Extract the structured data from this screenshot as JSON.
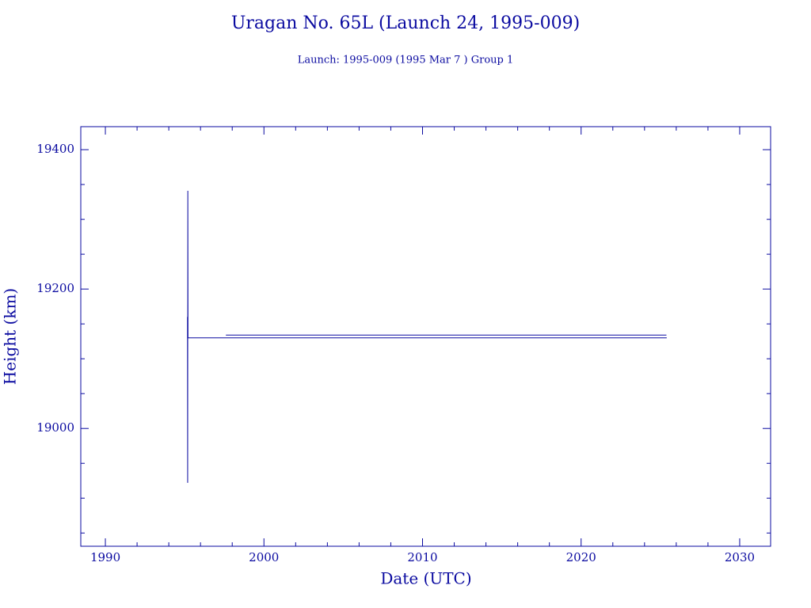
{
  "chart_data": {
    "type": "line",
    "title": "Uragan No. 65L (Launch 24, 1995-009)",
    "subtitle": "Launch: 1995-009  (1995 Mar  7 )  Group 1",
    "x_label": "Date (UTC)",
    "y_label": "Height (km)",
    "color": "#0a0aa0",
    "xlim": [
      1988.45,
      2031.95
    ],
    "ylim": [
      18831,
      19433
    ],
    "xticks": [
      1990,
      2000,
      2010,
      2020,
      2030
    ],
    "yticks": [
      19000,
      19200,
      19400
    ],
    "xminorticks": [
      1992,
      1994,
      1996,
      1998,
      2002,
      2004,
      2006,
      2008,
      2012,
      2014,
      2016,
      2018,
      2022,
      2024,
      2026,
      2028
    ],
    "yminorticks": [
      18850,
      18900,
      18950,
      19050,
      19100,
      19150,
      19250,
      19300,
      19350
    ],
    "series": [
      {
        "x": [
          1995.18,
          1995.19,
          1995.2,
          1995.21,
          2025.4,
          null,
          1997.6,
          2025.38
        ],
        "values": [
          19160,
          18922,
          19341,
          19130,
          19130,
          null,
          19134,
          19134
        ]
      }
    ]
  }
}
